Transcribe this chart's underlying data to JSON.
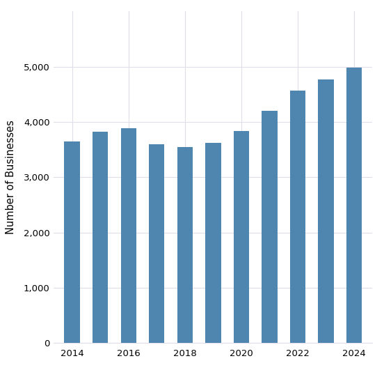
{
  "years": [
    2014,
    2015,
    2016,
    2017,
    2018,
    2019,
    2020,
    2021,
    2022,
    2023,
    2024
  ],
  "values": [
    3650,
    3820,
    3880,
    3590,
    3550,
    3620,
    3840,
    4200,
    4570,
    4770,
    4980
  ],
  "bar_color": "#4f86b0",
  "ylabel": "Number of Businesses",
  "ylim": [
    0,
    6000
  ],
  "yticks": [
    0,
    1000,
    2000,
    3000,
    4000,
    5000
  ],
  "background_color": "#ffffff",
  "grid_color": "#e0dde8",
  "bar_width": 0.55,
  "figwidth": 5.52,
  "figheight": 5.41,
  "dpi": 100
}
